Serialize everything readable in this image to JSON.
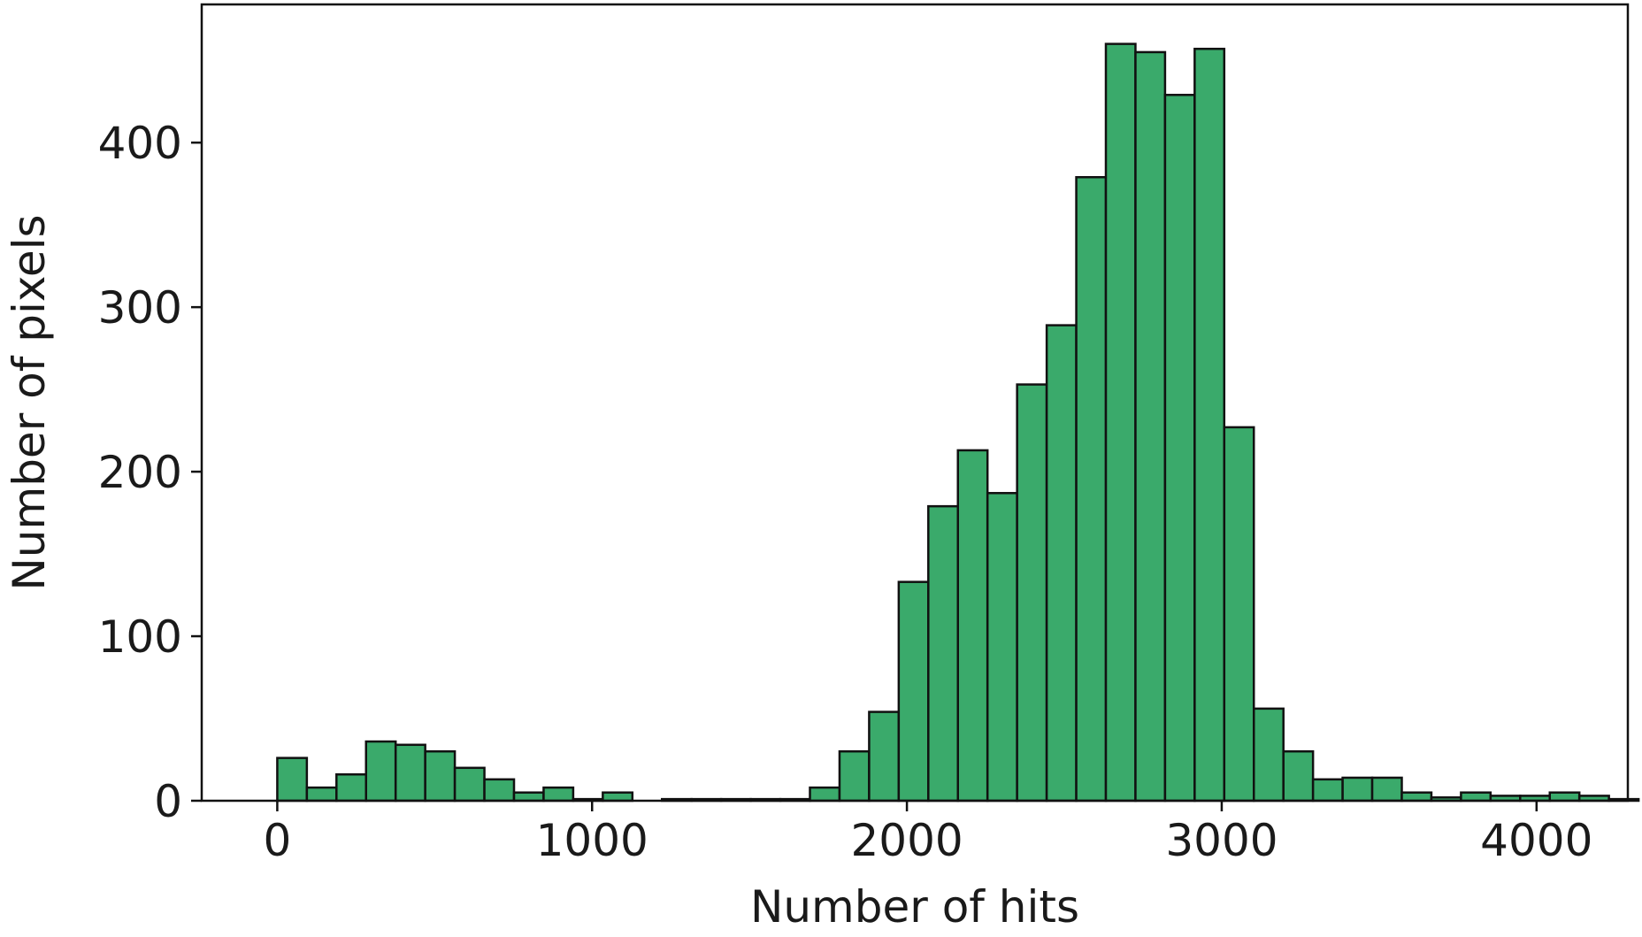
{
  "chart_data": {
    "type": "bar",
    "title": "",
    "xlabel": "Number of hits",
    "ylabel": "Number of pixels",
    "xlim": [
      -240,
      4290
    ],
    "ylim": [
      0,
      484
    ],
    "xticks": [
      0,
      1000,
      2000,
      3000,
      4000
    ],
    "yticks": [
      0,
      100,
      200,
      300,
      400
    ],
    "grid": false,
    "legend": "none",
    "bar_color": "#3aaa6b",
    "edge_color": "#111111",
    "bin_width": 94,
    "bin_edges_start": 0,
    "values": [
      26,
      8,
      16,
      36,
      34,
      30,
      20,
      13,
      5,
      8,
      1,
      5,
      0,
      1,
      1,
      1,
      1,
      1,
      8,
      30,
      54,
      133,
      179,
      213,
      187,
      253,
      289,
      379,
      460,
      455,
      429,
      457,
      227,
      56,
      30,
      13,
      14,
      14,
      5,
      2,
      5,
      3,
      3,
      5,
      3,
      1
    ]
  }
}
